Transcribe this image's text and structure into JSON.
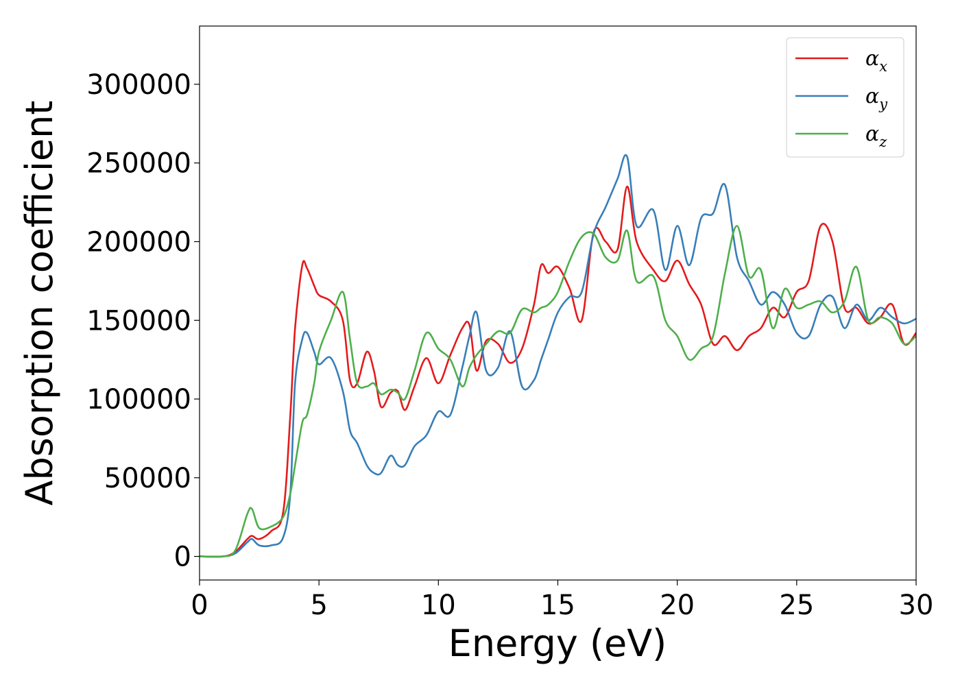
{
  "chart_data": {
    "type": "line",
    "xlabel": "Energy (eV)",
    "ylabel": "Absorption coefficient",
    "xlim": [
      0,
      30
    ],
    "ylim": [
      -15000,
      337000
    ],
    "xticks": [
      "0",
      "5",
      "10",
      "15",
      "20",
      "25",
      "30"
    ],
    "yticks": [
      "0",
      "50000",
      "100000",
      "150000",
      "200000",
      "250000",
      "300000"
    ],
    "grid": false,
    "legend_position": "top-right",
    "series": [
      {
        "name": "αx",
        "legend_symbol": "α",
        "legend_subscript": "x",
        "color": "#e41a1c",
        "x": [
          0,
          1,
          1.5,
          2,
          2.2,
          2.5,
          3,
          3.5,
          3.8,
          4,
          4.3,
          4.5,
          4.8,
          5,
          5.5,
          6,
          6.3,
          6.6,
          7,
          7.3,
          7.6,
          8,
          8.3,
          8.6,
          9,
          9.5,
          10,
          10.5,
          11,
          11.3,
          11.6,
          12,
          12.5,
          13,
          13.5,
          14,
          14.3,
          14.6,
          15,
          15.5,
          16,
          16.5,
          17,
          17.5,
          17.9,
          18.3,
          19,
          19.5,
          20,
          20.5,
          21,
          21.5,
          22,
          22.5,
          23,
          23.5,
          24,
          24.5,
          25,
          25.5,
          26,
          26.5,
          27,
          27.5,
          28,
          28.5,
          29,
          29.5,
          30
        ],
        "values": [
          0,
          0,
          3000,
          11000,
          13000,
          11000,
          16000,
          28000,
          90000,
          145000,
          185000,
          183000,
          172000,
          166000,
          162000,
          150000,
          112000,
          110000,
          130000,
          118000,
          95000,
          104000,
          105000,
          93000,
          108000,
          126000,
          110000,
          128000,
          145000,
          147000,
          118000,
          137000,
          135000,
          123000,
          132000,
          160000,
          185000,
          180000,
          184000,
          170000,
          150000,
          206000,
          200000,
          195000,
          235000,
          200000,
          182000,
          175000,
          188000,
          173000,
          160000,
          135000,
          140000,
          131000,
          140000,
          145000,
          158000,
          152000,
          168000,
          175000,
          210000,
          200000,
          158000,
          158000,
          148000,
          152000,
          160000,
          135000,
          142000
        ]
      },
      {
        "name": "αy",
        "legend_symbol": "α",
        "legend_subscript": "y",
        "color": "#377eb8",
        "x": [
          0,
          1,
          1.5,
          2,
          2.2,
          2.5,
          3,
          3.5,
          3.8,
          4,
          4.3,
          4.5,
          4.8,
          5,
          5.5,
          6,
          6.3,
          6.6,
          7,
          7.3,
          7.6,
          8,
          8.3,
          8.6,
          9,
          9.5,
          10,
          10.5,
          11,
          11.3,
          11.6,
          12,
          12.5,
          13,
          13.5,
          14,
          14.3,
          14.6,
          15,
          15.5,
          16,
          16.5,
          17,
          17.5,
          17.9,
          18.3,
          19,
          19.5,
          20,
          20.5,
          21,
          21.5,
          22,
          22.5,
          23,
          23.5,
          24,
          24.5,
          25,
          25.5,
          26,
          26.5,
          27,
          27.5,
          28,
          28.5,
          29,
          29.5,
          30
        ],
        "values": [
          0,
          0,
          2000,
          9000,
          11000,
          7000,
          7000,
          12000,
          40000,
          110000,
          138000,
          142000,
          130000,
          122000,
          126000,
          105000,
          80000,
          72000,
          58000,
          53000,
          53000,
          64000,
          58000,
          58000,
          70000,
          77000,
          92000,
          90000,
          120000,
          140000,
          155000,
          118000,
          120000,
          143000,
          108000,
          112000,
          125000,
          138000,
          155000,
          165000,
          168000,
          205000,
          222000,
          240000,
          254000,
          210000,
          220000,
          182000,
          210000,
          185000,
          215000,
          218000,
          236000,
          190000,
          175000,
          160000,
          168000,
          160000,
          142000,
          140000,
          160000,
          165000,
          145000,
          160000,
          150000,
          158000,
          152000,
          148000,
          151000
        ]
      },
      {
        "name": "αz",
        "legend_symbol": "α",
        "legend_subscript": "z",
        "color": "#4daf4a",
        "x": [
          0,
          1,
          1.5,
          2,
          2.2,
          2.5,
          3,
          3.5,
          3.8,
          4,
          4.3,
          4.5,
          4.8,
          5,
          5.5,
          6,
          6.3,
          6.6,
          7,
          7.3,
          7.6,
          8,
          8.3,
          8.6,
          9,
          9.5,
          10,
          10.5,
          11,
          11.3,
          11.6,
          12,
          12.5,
          13,
          13.5,
          14,
          14.3,
          14.6,
          15,
          15.5,
          16,
          16.5,
          17,
          17.5,
          17.9,
          18.3,
          19,
          19.5,
          20,
          20.5,
          21,
          21.5,
          22,
          22.5,
          23,
          23.5,
          24,
          24.5,
          25,
          25.5,
          26,
          26.5,
          27,
          27.5,
          28,
          28.5,
          29,
          29.5,
          30
        ],
        "values": [
          0,
          0,
          4000,
          27000,
          30000,
          18000,
          19000,
          25000,
          40000,
          58000,
          85000,
          90000,
          110000,
          130000,
          150000,
          168000,
          138000,
          110000,
          108000,
          110000,
          103000,
          106000,
          104000,
          100000,
          118000,
          142000,
          132000,
          125000,
          108000,
          120000,
          128000,
          135000,
          143000,
          142000,
          157000,
          155000,
          158000,
          160000,
          168000,
          188000,
          203000,
          205000,
          190000,
          188000,
          207000,
          175000,
          178000,
          150000,
          140000,
          125000,
          132000,
          140000,
          180000,
          210000,
          178000,
          182000,
          145000,
          170000,
          158000,
          160000,
          162000,
          155000,
          162000,
          184000,
          150000,
          152000,
          148000,
          135000,
          140000
        ]
      }
    ]
  }
}
